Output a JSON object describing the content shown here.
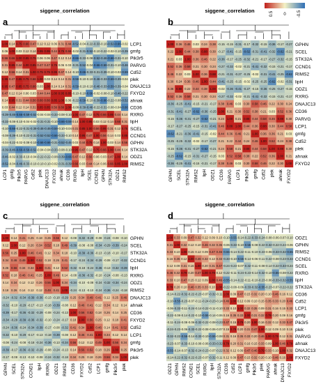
{
  "legend": {
    "ticks": [
      "0.5",
      "0",
      "-0.5"
    ],
    "colors": [
      "#c0201c",
      "#f4f1c4",
      "#2f6fb5"
    ]
  },
  "chart_data": [
    {
      "type": "heatmap",
      "panel": "a",
      "title": "siggene_correlation",
      "rows": [
        "LCP1",
        "gmfg",
        "Pik3r5",
        "PARVG",
        "Cd52",
        "plek",
        "DNAJC13",
        "FXYD2",
        "ahnak",
        "CD36",
        "RXRG",
        "lipH",
        "SCEL",
        "CCND1",
        "GPHN",
        "STK32A",
        "ODZ1",
        "RIMS2"
      ],
      "cols": [
        "LCP1",
        "gmfg",
        "Pik3r5",
        "PARVG",
        "Cd52",
        "plek",
        "DNAJC13",
        "FXYD2",
        "ahnak",
        "CD36",
        "RXRG",
        "lipH",
        "SCEL",
        "CCND1",
        "GPHN",
        "STK32A",
        "ODZ1",
        "RIMS2"
      ],
      "sample_values": [
        0.95,
        0.85,
        0.75,
        0.66,
        0.47,
        0.14,
        0.06,
        -0.03,
        -0.12,
        -0.14,
        -0.31,
        -0.44,
        -0.56
      ]
    },
    {
      "type": "heatmap",
      "panel": "b",
      "title": "siggene_correlation",
      "rows": [
        "GPHN",
        "SCEL",
        "STK32A",
        "CCND1",
        "RIMS2",
        "lipH",
        "ODZ1",
        "RXRG",
        "DNAJC13",
        "CD36",
        "PARVG",
        "LCP1",
        "gmfg",
        "Cd52",
        "plek",
        "ahnak",
        "FXYD2"
      ],
      "cols": [
        "GPHN",
        "SCEL",
        "STK32A",
        "RIMS2",
        "lipH",
        "ODZ1",
        "CD36",
        "PARVG",
        "LCP1",
        "Pik3r5",
        "gmfg",
        "Cd52",
        "plek",
        "ahnak",
        "FXYD2"
      ],
      "sample_values": [
        0.3,
        0.36,
        0.46,
        -0.03,
        -0.24,
        -0.36,
        -0.22,
        0.44,
        0.38,
        0.88,
        -0.52,
        0.58,
        -0.21
      ]
    },
    {
      "type": "heatmap",
      "panel": "c",
      "title": "siggene_correlation",
      "rows": [
        "GPHN",
        "SCEL",
        "STK32A",
        "CCND1",
        "lipH",
        "RXRG",
        "ODZ1",
        "RIMS2",
        "DNAJC13",
        "ahnak",
        "CD36",
        "FXYD2",
        "Cd52",
        "LCP1",
        "gmfg",
        "Pik3r5",
        "plek"
      ],
      "cols": [
        "GPHN",
        "SCEL",
        "STK32A",
        "CCND1",
        "lipH",
        "RXRG",
        "ODZ1",
        "RIMS2",
        "CD36",
        "FXYD2",
        "Cd52",
        "LCP1",
        "gmfg",
        "Pik3r5",
        "plek"
      ],
      "sample_values": [
        0.52,
        0.46,
        0.41,
        0.25,
        0.18,
        0.14,
        0.12,
        -0.12,
        -0.26,
        -0.34,
        -0.34,
        0.49,
        0.56
      ]
    },
    {
      "type": "heatmap",
      "panel": "d",
      "title": "siggene_correlation",
      "rows": [
        "ODZ1",
        "GPHN",
        "RIMS2",
        "CCND1",
        "SCEL",
        "RXRG",
        "lipH",
        "STK32A",
        "CD36",
        "Cd52",
        "LCP1",
        "gmfg",
        "Pik3r5",
        "plek",
        "PARVG",
        "ahnak",
        "DNAJC13",
        "FXYD2"
      ],
      "cols": [
        "ODZ1",
        "GPHN",
        "RIMS2",
        "CCND1",
        "SCEL",
        "RXRG",
        "lipH",
        "STK32A",
        "CD36",
        "Cd52",
        "LCP1",
        "gmfg",
        "Pik3r5",
        "plek",
        "PARVG",
        "ahnak",
        "DNAJC13",
        "FXYD2"
      ],
      "sample_values": [
        0.46,
        0.35,
        0.2,
        0.47,
        0.32,
        0.33,
        -0.31,
        0.15,
        0.12,
        0.1,
        -0.16,
        0.79,
        -0.09
      ]
    }
  ]
}
